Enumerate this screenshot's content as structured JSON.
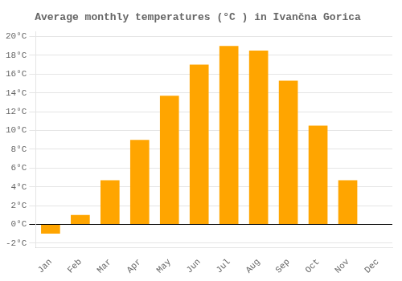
{
  "chart_data": {
    "type": "bar",
    "title": "Average monthly temperatures (°C ) in Ivančna Gorica",
    "categories": [
      "Jan",
      "Feb",
      "Mar",
      "Apr",
      "May",
      "Jun",
      "Jul",
      "Aug",
      "Sep",
      "Oct",
      "Nov",
      "Dec"
    ],
    "values": [
      -1.0,
      1.0,
      4.7,
      9.0,
      13.7,
      17.0,
      19.0,
      18.5,
      15.3,
      10.5,
      4.7,
      0.0
    ],
    "color": "#FFA500",
    "ylim": [
      -2.5,
      20.5
    ],
    "yticks": [
      {
        "value": -2,
        "label": "-2°C"
      },
      {
        "value": 0,
        "label": "0°C"
      },
      {
        "value": 2,
        "label": "2°C"
      },
      {
        "value": 4,
        "label": "4°C"
      },
      {
        "value": 6,
        "label": "6°C"
      },
      {
        "value": 8,
        "label": "8°C"
      },
      {
        "value": 10,
        "label": "10°C"
      },
      {
        "value": 12,
        "label": "12°C"
      },
      {
        "value": 14,
        "label": "14°C"
      },
      {
        "value": 16,
        "label": "16°C"
      },
      {
        "value": 18,
        "label": "18°C"
      },
      {
        "value": 20,
        "label": "20°C"
      }
    ],
    "grid": true
  }
}
